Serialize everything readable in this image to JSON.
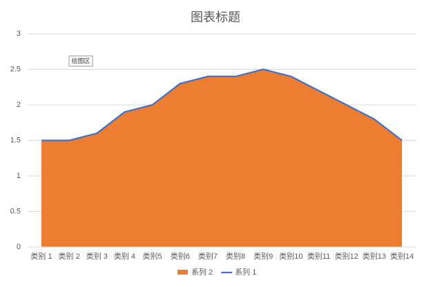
{
  "chart_data": {
    "type": "area",
    "title": "图表标题",
    "annotation": "绘图区",
    "categories": [
      "类别 1",
      "类别 2",
      "类别 3",
      "类别 4",
      "类别5",
      "类别6",
      "类别7",
      "类别8",
      "类别9",
      "类别10",
      "类别11",
      "类别12",
      "类别13",
      "类别14"
    ],
    "series": [
      {
        "name": "系列 2",
        "type": "area",
        "color": "#ed7d31",
        "values": [
          1.5,
          1.5,
          1.6,
          1.9,
          2.0,
          2.3,
          2.4,
          2.4,
          2.5,
          2.4,
          2.2,
          2.0,
          1.8,
          1.5
        ]
      },
      {
        "name": "系列 1",
        "type": "line",
        "color": "#4472c4",
        "values": [
          1.5,
          1.5,
          1.6,
          1.9,
          2.0,
          2.3,
          2.4,
          2.4,
          2.5,
          2.4,
          2.2,
          2.0,
          1.8,
          1.5
        ]
      }
    ],
    "ylim": [
      0,
      3
    ],
    "yticks": [
      0,
      0.5,
      1,
      1.5,
      2,
      2.5,
      3
    ],
    "grid": true,
    "legend": "bottom"
  }
}
